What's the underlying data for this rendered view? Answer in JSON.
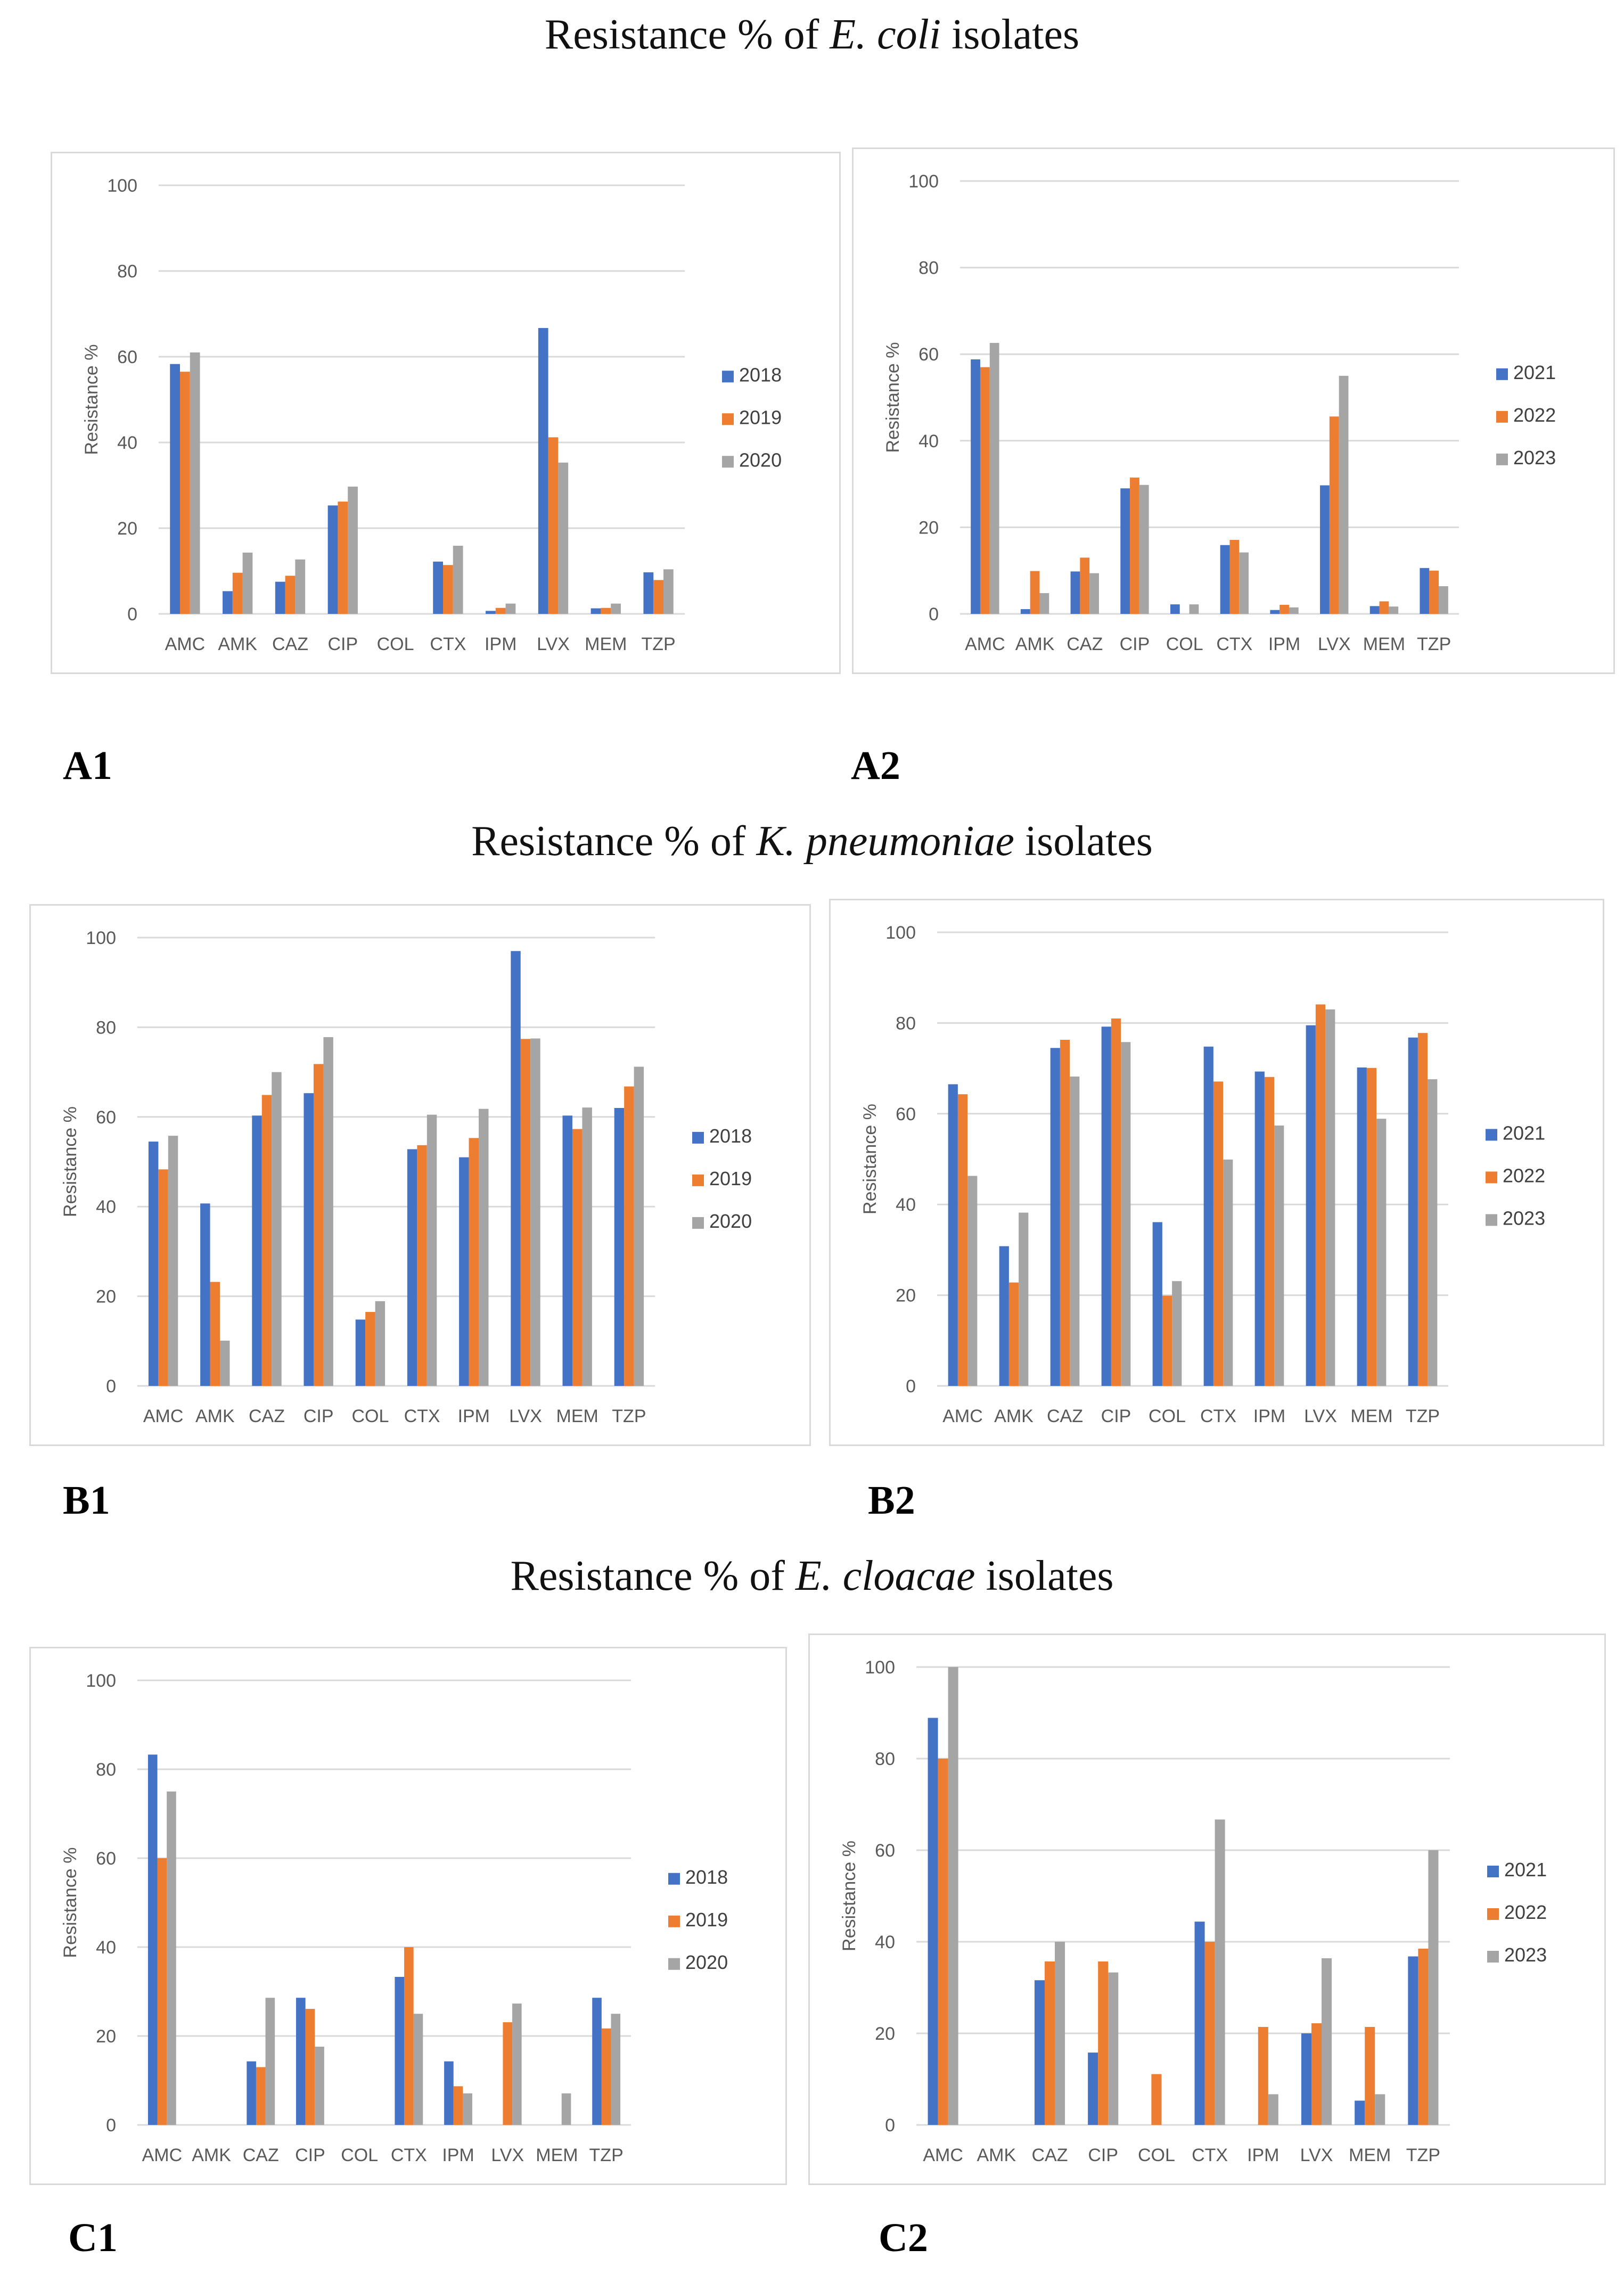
{
  "colors": {
    "y1": "#4472C4",
    "y2": "#ED7D31",
    "y3": "#A5A5A5",
    "grid": "#d9d9d9",
    "text": "#595959"
  },
  "sections": [
    {
      "prefix": "Resistance % of ",
      "species": "E. coli",
      "suffix": " isolates"
    },
    {
      "prefix": "Resistance % of ",
      "species": "K. pneumoniae",
      "suffix": " isolates"
    },
    {
      "prefix": "Resistance % of ",
      "species": "E. cloacae",
      "suffix": " isolates"
    }
  ],
  "chart_data": [
    {
      "panel": "A1",
      "type": "bar",
      "ylabel": "Resistance %",
      "ylim": [
        0,
        100
      ],
      "yticks": [
        0,
        20,
        40,
        60,
        80,
        100
      ],
      "grid": true,
      "legend": "right",
      "categories": [
        "AMC",
        "AMK",
        "CAZ",
        "CIP",
        "COL",
        "CTX",
        "IPM",
        "LVX",
        "MEM",
        "TZP"
      ],
      "series": [
        {
          "name": "2018",
          "values": [
            58.3,
            5.3,
            7.5,
            25.3,
            0,
            12.2,
            0.7,
            66.7,
            1.3,
            9.7
          ]
        },
        {
          "name": "2019",
          "values": [
            56.5,
            9.6,
            8.9,
            26.2,
            0,
            11.4,
            1.4,
            41.2,
            1.4,
            7.9
          ]
        },
        {
          "name": "2020",
          "values": [
            61.0,
            14.3,
            12.7,
            29.7,
            0,
            15.9,
            2.4,
            35.3,
            2.4,
            10.4
          ]
        }
      ]
    },
    {
      "panel": "A2",
      "type": "bar",
      "ylabel": "Resistance %",
      "ylim": [
        0,
        100
      ],
      "yticks": [
        0,
        20,
        40,
        60,
        80,
        100
      ],
      "grid": true,
      "legend": "right",
      "categories": [
        "AMC",
        "AMK",
        "CAZ",
        "CIP",
        "COL",
        "CTX",
        "IPM",
        "LVX",
        "MEM",
        "TZP"
      ],
      "series": [
        {
          "name": "2021",
          "values": [
            58.8,
            1.1,
            9.8,
            29.0,
            2.2,
            15.9,
            0.9,
            29.7,
            1.8,
            10.6
          ]
        },
        {
          "name": "2022",
          "values": [
            57.0,
            9.9,
            13.0,
            31.5,
            0,
            17.1,
            2.1,
            45.6,
            2.9,
            10.0
          ]
        },
        {
          "name": "2023",
          "values": [
            62.6,
            4.8,
            9.4,
            29.8,
            2.2,
            14.2,
            1.5,
            55.0,
            1.7,
            6.4
          ]
        }
      ]
    },
    {
      "panel": "B1",
      "type": "bar",
      "ylabel": "Resistance %",
      "ylim": [
        0,
        100
      ],
      "yticks": [
        0,
        20,
        40,
        60,
        80,
        100
      ],
      "grid": true,
      "legend": "right",
      "categories": [
        "AMC",
        "AMK",
        "CAZ",
        "CIP",
        "COL",
        "CTX",
        "IPM",
        "LVX",
        "MEM",
        "TZP"
      ],
      "series": [
        {
          "name": "2018",
          "values": [
            54.5,
            40.7,
            60.3,
            65.3,
            14.8,
            52.8,
            51.0,
            97.0,
            60.3,
            62.0
          ]
        },
        {
          "name": "2019",
          "values": [
            48.3,
            23.2,
            64.9,
            71.8,
            16.5,
            53.7,
            55.3,
            77.4,
            57.3,
            66.8
          ]
        },
        {
          "name": "2020",
          "values": [
            55.8,
            10.1,
            70.0,
            77.8,
            18.9,
            60.5,
            61.8,
            77.5,
            62.1,
            71.2
          ]
        }
      ]
    },
    {
      "panel": "B2",
      "type": "bar",
      "ylabel": "Resistance %",
      "ylim": [
        0,
        100
      ],
      "yticks": [
        0,
        20,
        40,
        60,
        80,
        100
      ],
      "grid": true,
      "legend": "right",
      "categories": [
        "AMC",
        "AMK",
        "CAZ",
        "CIP",
        "COL",
        "CTX",
        "IPM",
        "LVX",
        "MEM",
        "TZP"
      ],
      "series": [
        {
          "name": "2021",
          "values": [
            66.5,
            30.8,
            74.5,
            79.2,
            36.1,
            74.8,
            69.3,
            79.5,
            70.2,
            76.8
          ]
        },
        {
          "name": "2022",
          "values": [
            64.3,
            22.8,
            76.3,
            81.0,
            19.9,
            67.1,
            68.1,
            84.1,
            70.1,
            77.8
          ]
        },
        {
          "name": "2023",
          "values": [
            46.3,
            38.2,
            68.2,
            75.8,
            23.1,
            49.9,
            57.4,
            83.0,
            58.9,
            67.6
          ]
        }
      ]
    },
    {
      "panel": "C1",
      "type": "bar",
      "ylabel": "Resistance %",
      "ylim": [
        0,
        100
      ],
      "yticks": [
        0,
        20,
        40,
        60,
        80,
        100
      ],
      "grid": true,
      "legend": "right",
      "categories": [
        "AMC",
        "AMK",
        "CAZ",
        "CIP",
        "COL",
        "CTX",
        "IPM",
        "LVX",
        "MEM",
        "TZP"
      ],
      "series": [
        {
          "name": "2018",
          "values": [
            83.3,
            0,
            14.3,
            28.6,
            0,
            33.3,
            14.3,
            0,
            0,
            28.6
          ]
        },
        {
          "name": "2019",
          "values": [
            60.0,
            0,
            13.0,
            26.1,
            0,
            40.0,
            8.7,
            23.1,
            0,
            21.7
          ]
        },
        {
          "name": "2020",
          "values": [
            75.0,
            0,
            28.6,
            17.6,
            0,
            25.0,
            7.1,
            27.3,
            7.1,
            25.0
          ]
        }
      ]
    },
    {
      "panel": "C2",
      "type": "bar",
      "ylabel": "Resistance %",
      "ylim": [
        0,
        100
      ],
      "yticks": [
        0,
        20,
        40,
        60,
        80,
        100
      ],
      "grid": true,
      "legend": "right",
      "categories": [
        "AMC",
        "AMK",
        "CAZ",
        "CIP",
        "COL",
        "CTX",
        "IPM",
        "LVX",
        "MEM",
        "TZP"
      ],
      "series": [
        {
          "name": "2021",
          "values": [
            88.9,
            0,
            31.6,
            15.8,
            0,
            44.4,
            0,
            20.0,
            5.3,
            36.8
          ]
        },
        {
          "name": "2022",
          "values": [
            80.0,
            0,
            35.7,
            35.7,
            11.1,
            40.0,
            21.4,
            22.2,
            21.4,
            38.5
          ]
        },
        {
          "name": "2023",
          "values": [
            100.0,
            0,
            40.0,
            33.3,
            0,
            66.7,
            6.7,
            36.4,
            6.7,
            60.0
          ]
        }
      ]
    }
  ]
}
